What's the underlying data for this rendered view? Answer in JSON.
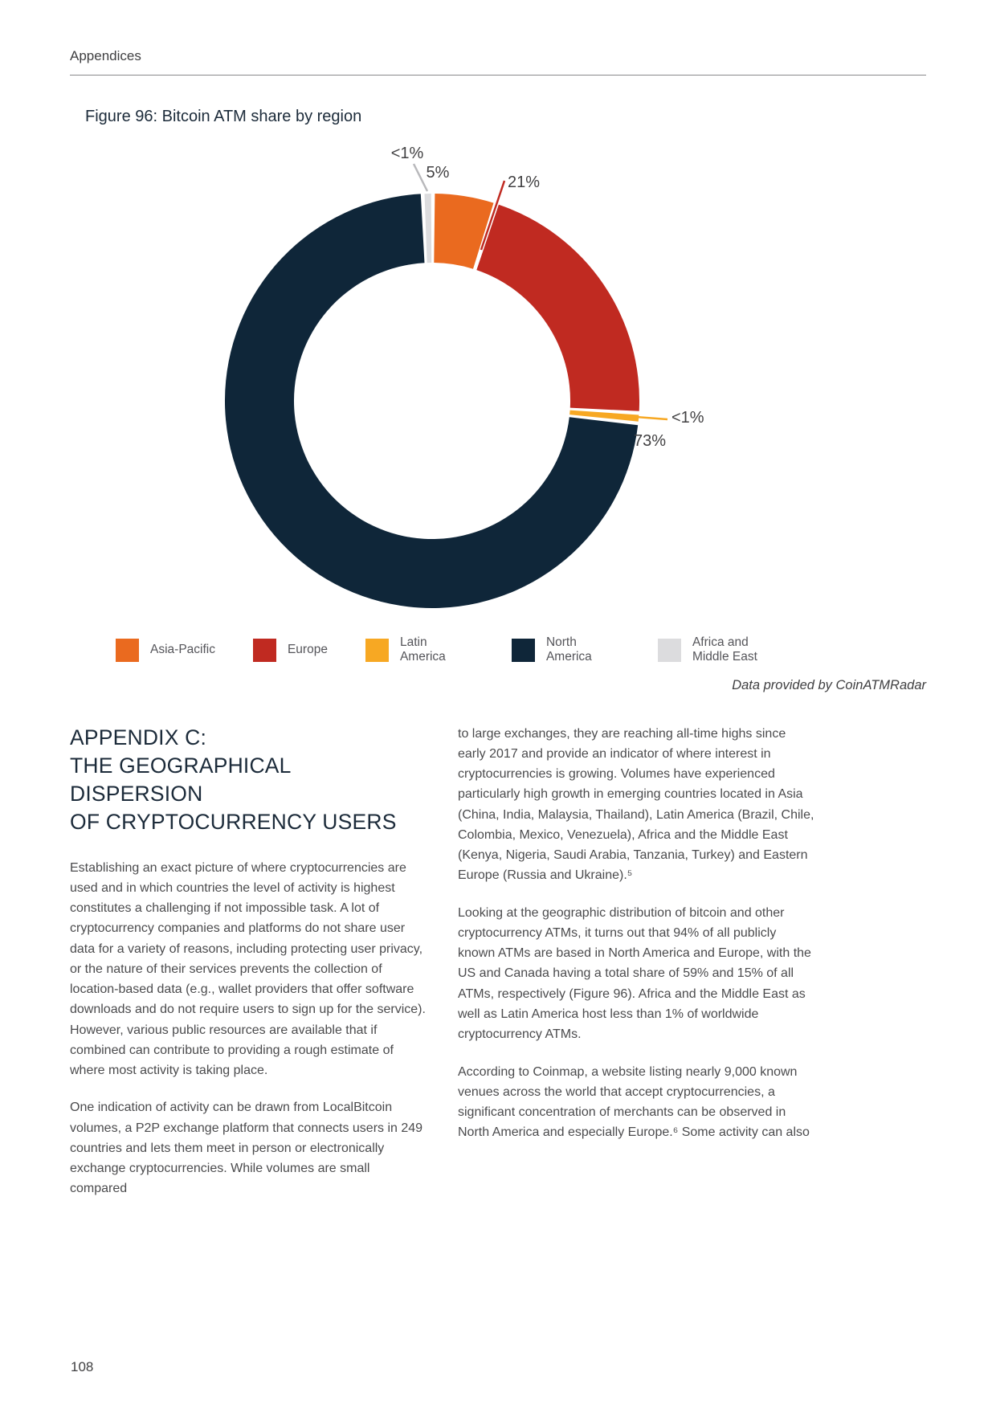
{
  "page": {
    "running_header": "Appendices",
    "page_number": "108"
  },
  "figure": {
    "title": "Figure 96: Bitcoin ATM share by region",
    "source_note": "Data provided by CoinATMRadar"
  },
  "chart_data": {
    "type": "pie",
    "subtype": "donut",
    "title": "Figure 96: Bitcoin ATM share by region",
    "legend_position": "bottom",
    "series": [
      {
        "name": "Asia-Pacific",
        "value": 5,
        "label": "5%",
        "color": "#EA6A1F"
      },
      {
        "name": "Europe",
        "value": 21,
        "label": "21%",
        "color": "#C02A21"
      },
      {
        "name": "Latin America",
        "value": 0.5,
        "label": "<1%",
        "color": "#F7A823"
      },
      {
        "name": "North America",
        "value": 73,
        "label": "73%",
        "color": "#0F2639"
      },
      {
        "name": "Africa and Middle East",
        "value": 0.5,
        "label": "<1%",
        "color": "#DCDCDE"
      }
    ],
    "source": "Data provided by CoinATMRadar"
  },
  "article": {
    "heading": "APPENDIX C:\nTHE GEOGRAPHICAL DISPERSION\nOF CRYPTOCURRENCY USERS",
    "left_paragraphs": [
      "Establishing an exact picture of where cryptocurrencies are used and in which countries the level of activity is highest constitutes a challenging if not impossible task. A lot of cryptocurrency companies and platforms do not share user data for a variety of reasons, including protecting user privacy, or the nature of their services prevents the collection of location-based data (e.g., wallet providers that offer software downloads and do not require users to sign up for the service). However, various public resources are available that if combined can contribute to providing a rough estimate of where most activity is taking place.",
      "One indication of activity can be drawn from LocalBitcoin volumes, a P2P exchange platform that connects users in 249 countries and lets them meet in person or electronically exchange cryptocurrencies. While volumes are small compared"
    ],
    "right_paragraphs": [
      "to large exchanges, they are reaching all-time highs since early 2017 and provide an indicator of where interest in cryptocurrencies is growing. Volumes have experienced particularly high growth in emerging countries located in Asia (China, India, Malaysia, Thailand), Latin America (Brazil, Chile, Colombia, Mexico, Venezuela), Africa and the Middle East (Kenya, Nigeria, Saudi Arabia, Tanzania, Turkey) and Eastern Europe (Russia and Ukraine).⁵",
      "Looking at the geographic distribution of bitcoin and other cryptocurrency ATMs, it turns out that 94% of all publicly known ATMs are based in North America and Europe, with the US and Canada having a total share of 59% and 15% of all ATMs, respectively (Figure 96). Africa and the Middle East as well as Latin America host less than 1% of worldwide cryptocurrency ATMs.",
      "According to Coinmap, a website listing nearly 9,000 known venues across the world that accept cryptocurrencies, a significant concentration of merchants can be observed in North America and especially Europe.⁶ Some activity can also"
    ]
  }
}
